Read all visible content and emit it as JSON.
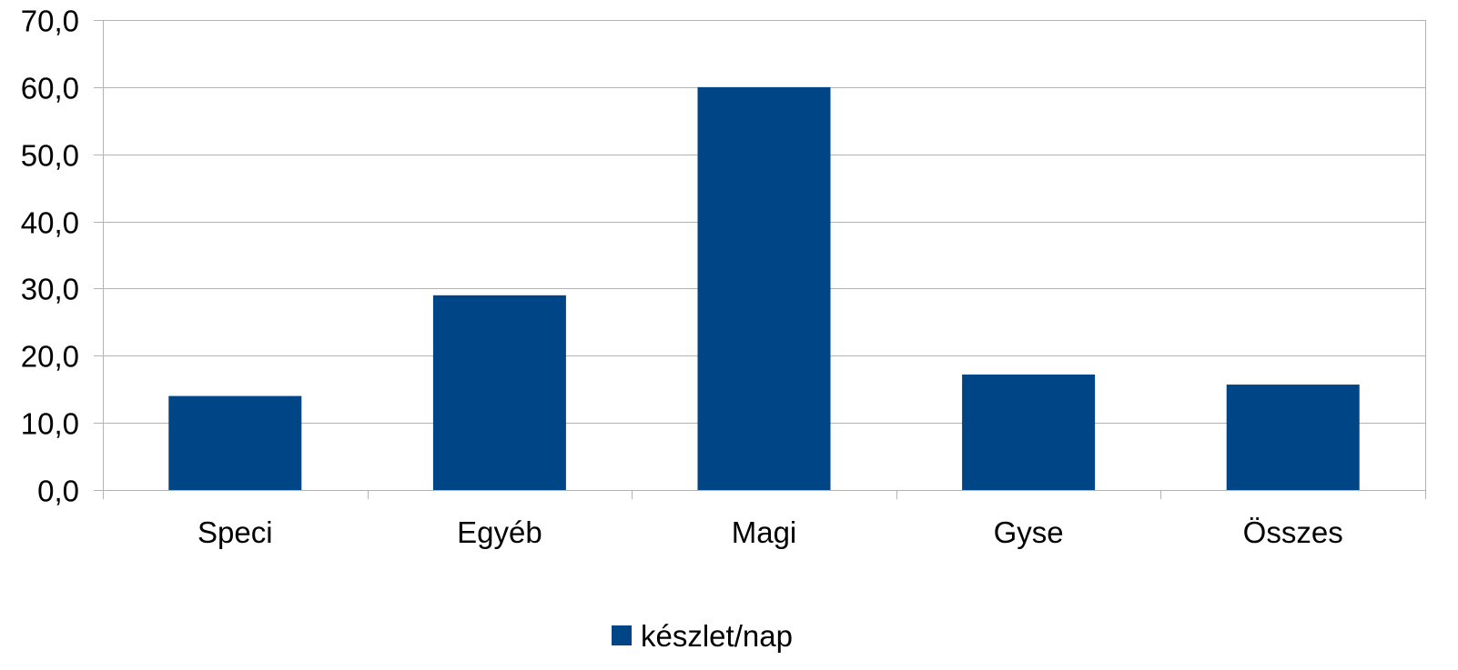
{
  "chart_data": {
    "type": "bar",
    "categories": [
      "Speci",
      "Egyéb",
      "Magi",
      "Gyse",
      "Összes"
    ],
    "series": [
      {
        "name": "készlet/nap",
        "values": [
          14.0,
          29.0,
          60.0,
          17.2,
          15.7
        ],
        "color": "#004586"
      }
    ],
    "title": "",
    "xlabel": "",
    "ylabel": "",
    "ylim": [
      0,
      70
    ],
    "ytick_labels": [
      "0,0",
      "10,0",
      "20,0",
      "30,0",
      "40,0",
      "50,0",
      "60,0",
      "70,0"
    ],
    "grid": true,
    "grid_color": "#b3b3b3",
    "legend_position": "bottom-center"
  }
}
